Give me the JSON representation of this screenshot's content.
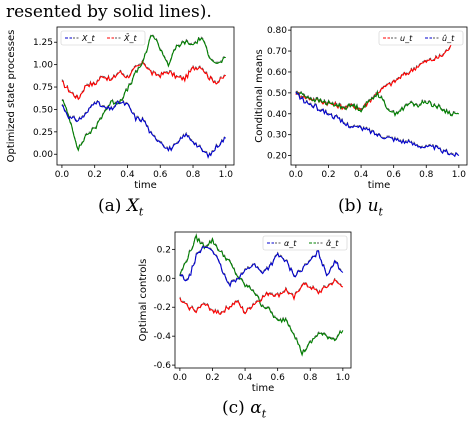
{
  "page": {
    "top_text": "resented by solid lines).",
    "captions": [
      {
        "label": "(a)",
        "var": "X",
        "sub": "t"
      },
      {
        "label": "(b)",
        "var": "u",
        "sub": "t"
      },
      {
        "label": "(c)",
        "var": "α",
        "sub": "t"
      }
    ]
  },
  "chart_data": [
    {
      "type": "line",
      "title": "",
      "xlabel": "time",
      "ylabel": "Optimized state processes",
      "xlim": [
        -0.03,
        1.05
      ],
      "ylim": [
        -0.12,
        1.42
      ],
      "xticks": [
        "0.0",
        "0.2",
        "0.4",
        "0.6",
        "0.8",
        "1.0"
      ],
      "yticks": [
        "0.00",
        "0.25",
        "0.50",
        "0.75",
        "1.00",
        "1.25"
      ],
      "legend": {
        "placement": "top-left",
        "entries": [
          "X_t",
          "X̄_t"
        ]
      },
      "series": [
        {
          "color": "#ff0000",
          "x": [
            0.0,
            0.05,
            0.1,
            0.15,
            0.2,
            0.25,
            0.3,
            0.35,
            0.4,
            0.45,
            0.5,
            0.55,
            0.6,
            0.65,
            0.7,
            0.75,
            0.8,
            0.85,
            0.9,
            0.95,
            1.0
          ],
          "values": [
            0.8,
            0.7,
            0.62,
            0.78,
            0.78,
            0.88,
            0.82,
            0.92,
            0.86,
            0.96,
            1.02,
            0.9,
            0.88,
            0.92,
            0.86,
            0.84,
            0.96,
            0.98,
            0.85,
            0.8,
            0.88
          ]
        },
        {
          "color": "#008000",
          "x": [
            0.0,
            0.05,
            0.1,
            0.15,
            0.2,
            0.25,
            0.3,
            0.35,
            0.4,
            0.45,
            0.5,
            0.55,
            0.6,
            0.65,
            0.7,
            0.75,
            0.8,
            0.85,
            0.9,
            0.95,
            1.0
          ],
          "values": [
            0.62,
            0.38,
            0.05,
            0.22,
            0.28,
            0.45,
            0.58,
            0.58,
            0.72,
            0.9,
            1.05,
            1.35,
            1.18,
            1.0,
            1.2,
            1.25,
            1.22,
            1.3,
            1.1,
            1.0,
            1.08
          ]
        },
        {
          "color": "#0000cc",
          "x": [
            0.0,
            0.05,
            0.1,
            0.15,
            0.2,
            0.25,
            0.3,
            0.35,
            0.4,
            0.45,
            0.5,
            0.55,
            0.6,
            0.65,
            0.7,
            0.75,
            0.8,
            0.85,
            0.9,
            0.95,
            1.0
          ],
          "values": [
            0.55,
            0.4,
            0.38,
            0.45,
            0.6,
            0.52,
            0.5,
            0.58,
            0.55,
            0.4,
            0.38,
            0.2,
            0.15,
            0.05,
            0.1,
            0.22,
            0.15,
            0.05,
            -0.02,
            0.1,
            0.18
          ]
        }
      ]
    },
    {
      "type": "line",
      "title": "",
      "xlabel": "time",
      "ylabel": "Conditional means",
      "xlim": [
        -0.03,
        1.05
      ],
      "ylim": [
        0.155,
        0.815
      ],
      "xticks": [
        "0.0",
        "0.2",
        "0.4",
        "0.6",
        "0.8",
        "1.0"
      ],
      "yticks": [
        "0.20",
        "0.30",
        "0.40",
        "0.50",
        "0.60",
        "0.70",
        "0.80"
      ],
      "legend": {
        "placement": "top-right",
        "entries": [
          "u_t",
          "û_t"
        ]
      },
      "series": [
        {
          "color": "#ff0000",
          "x": [
            0.0,
            0.05,
            0.1,
            0.15,
            0.2,
            0.25,
            0.3,
            0.35,
            0.4,
            0.45,
            0.5,
            0.55,
            0.6,
            0.65,
            0.7,
            0.75,
            0.8,
            0.85,
            0.9,
            0.95,
            1.0
          ],
          "values": [
            0.5,
            0.48,
            0.47,
            0.46,
            0.45,
            0.44,
            0.43,
            0.44,
            0.42,
            0.46,
            0.5,
            0.53,
            0.55,
            0.58,
            0.6,
            0.63,
            0.65,
            0.66,
            0.68,
            0.72,
            0.79
          ]
        },
        {
          "color": "#008000",
          "x": [
            0.0,
            0.05,
            0.1,
            0.15,
            0.2,
            0.25,
            0.3,
            0.35,
            0.4,
            0.45,
            0.5,
            0.55,
            0.6,
            0.65,
            0.7,
            0.75,
            0.8,
            0.85,
            0.9,
            0.95,
            1.0
          ],
          "values": [
            0.5,
            0.49,
            0.47,
            0.46,
            0.45,
            0.44,
            0.43,
            0.44,
            0.42,
            0.46,
            0.5,
            0.44,
            0.4,
            0.42,
            0.45,
            0.44,
            0.46,
            0.44,
            0.42,
            0.4,
            0.4
          ]
        },
        {
          "color": "#0000cc",
          "x": [
            0.0,
            0.05,
            0.1,
            0.15,
            0.2,
            0.25,
            0.3,
            0.35,
            0.4,
            0.45,
            0.5,
            0.55,
            0.6,
            0.65,
            0.7,
            0.75,
            0.8,
            0.85,
            0.9,
            0.95,
            1.0
          ],
          "values": [
            0.5,
            0.46,
            0.44,
            0.42,
            0.4,
            0.38,
            0.35,
            0.34,
            0.33,
            0.32,
            0.3,
            0.29,
            0.28,
            0.27,
            0.26,
            0.25,
            0.24,
            0.24,
            0.22,
            0.21,
            0.2
          ]
        }
      ]
    },
    {
      "type": "line",
      "title": "",
      "xlabel": "time",
      "ylabel": "Optimal controls",
      "xlim": [
        -0.03,
        1.05
      ],
      "ylim": [
        -0.62,
        0.32
      ],
      "xticks": [
        "0.0",
        "0.2",
        "0.4",
        "0.6",
        "0.8",
        "1.0"
      ],
      "yticks": [
        "-0.6",
        "-0.4",
        "-0.2",
        "0.0",
        "0.2"
      ],
      "legend": {
        "placement": "top-right",
        "entries": [
          "α_t",
          "α̂_t"
        ]
      },
      "series": [
        {
          "color": "#008000",
          "x": [
            0.0,
            0.05,
            0.1,
            0.15,
            0.2,
            0.25,
            0.3,
            0.35,
            0.4,
            0.45,
            0.5,
            0.55,
            0.6,
            0.65,
            0.7,
            0.75,
            0.8,
            0.85,
            0.9,
            0.95,
            1.0
          ],
          "values": [
            0.02,
            0.15,
            0.28,
            0.22,
            0.26,
            0.18,
            0.12,
            0.02,
            -0.05,
            -0.08,
            -0.18,
            -0.22,
            -0.3,
            -0.28,
            -0.38,
            -0.52,
            -0.45,
            -0.38,
            -0.4,
            -0.42,
            -0.36
          ]
        },
        {
          "color": "#0000cc",
          "x": [
            0.0,
            0.05,
            0.1,
            0.15,
            0.2,
            0.25,
            0.3,
            0.35,
            0.4,
            0.45,
            0.5,
            0.55,
            0.6,
            0.65,
            0.7,
            0.75,
            0.8,
            0.85,
            0.9,
            0.95,
            1.0
          ],
          "values": [
            0.02,
            -0.02,
            0.15,
            0.22,
            0.2,
            0.08,
            -0.05,
            0.0,
            0.05,
            0.1,
            0.04,
            0.08,
            0.16,
            0.12,
            0.02,
            0.06,
            0.12,
            0.18,
            0.02,
            0.12,
            0.04
          ]
        },
        {
          "color": "#ff0000",
          "x": [
            0.0,
            0.05,
            0.1,
            0.15,
            0.2,
            0.25,
            0.3,
            0.35,
            0.4,
            0.45,
            0.5,
            0.55,
            0.6,
            0.65,
            0.7,
            0.75,
            0.8,
            0.85,
            0.9,
            0.95,
            1.0
          ],
          "values": [
            -0.15,
            -0.2,
            -0.22,
            -0.18,
            -0.22,
            -0.24,
            -0.2,
            -0.16,
            -0.24,
            -0.18,
            -0.14,
            -0.1,
            -0.12,
            -0.08,
            -0.14,
            -0.04,
            -0.06,
            -0.1,
            -0.06,
            -0.02,
            -0.06
          ]
        }
      ]
    }
  ]
}
